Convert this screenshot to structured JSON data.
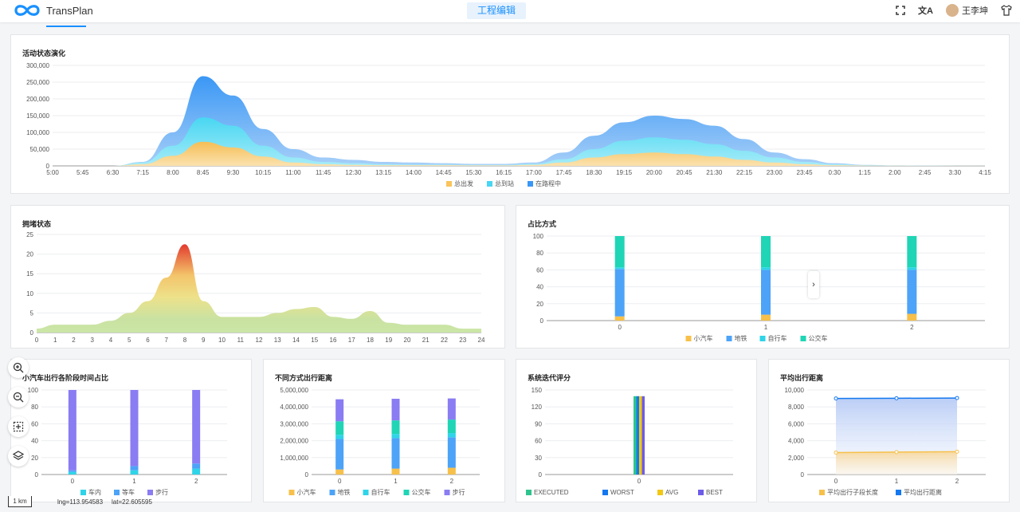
{
  "app": {
    "name": "TransPlan",
    "active_tab": "工程编辑",
    "user": "王李坤"
  },
  "map": {
    "scale": "1 km",
    "lng": "lng=113.954583",
    "lat": "lat=22.605595"
  },
  "panels": {
    "activity": {
      "title": "活动状态演化"
    },
    "congestion": {
      "title": "拥堵状态"
    },
    "modeshare": {
      "title": "占比方式"
    },
    "carstage": {
      "title": "小汽车出行各阶段时间占比"
    },
    "modedist": {
      "title": "不同方式出行距离"
    },
    "iteration": {
      "title": "系统迭代评分"
    },
    "avgdist": {
      "title": "平均出行距离"
    }
  },
  "colors": {
    "accent": "#1890ff",
    "depart": "#f9c45c",
    "arrive": "#48d6f2",
    "enroute": "#3a97f5",
    "car": "#f7c04a",
    "metro": "#4da3f7",
    "bike": "#2fd4e8",
    "bus": "#1fd5b5",
    "walk": "#8a7cf2"
  },
  "chart_data": [
    {
      "type": "area",
      "title": "活动状态演化",
      "ylim": [
        0,
        300000
      ],
      "yticks": [
        "0",
        "50,000",
        "100,000",
        "150,000",
        "200,000",
        "250,000",
        "300,000"
      ],
      "x": [
        "5:00",
        "5:45",
        "6:30",
        "7:15",
        "8:00",
        "8:45",
        "9:30",
        "10:15",
        "11:00",
        "11:45",
        "12:30",
        "13:15",
        "14:00",
        "14:45",
        "15:30",
        "16:15",
        "17:00",
        "17:45",
        "18:30",
        "19:15",
        "20:00",
        "20:45",
        "21:30",
        "22:15",
        "23:00",
        "23:45",
        "0:30",
        "1:15",
        "2:00",
        "2:45",
        "3:30",
        "4:15"
      ],
      "series": [
        {
          "name": "总出发",
          "values": [
            0,
            0,
            0,
            5000,
            30000,
            72000,
            55000,
            28000,
            10000,
            5000,
            3000,
            2000,
            2000,
            2000,
            1500,
            1500,
            3000,
            10000,
            25000,
            35000,
            40000,
            35000,
            28000,
            18000,
            10000,
            5000,
            2000,
            1000,
            500,
            300,
            200,
            100
          ]
        },
        {
          "name": "总到站",
          "values": [
            0,
            0,
            0,
            10000,
            60000,
            145000,
            120000,
            60000,
            25000,
            12000,
            8000,
            5000,
            4000,
            4000,
            3000,
            3000,
            6000,
            20000,
            50000,
            75000,
            85000,
            78000,
            65000,
            45000,
            25000,
            12000,
            5000,
            2000,
            1000,
            500,
            300,
            200
          ]
        },
        {
          "name": "在路程中",
          "values": [
            0,
            0,
            0,
            12000,
            100000,
            268000,
            210000,
            110000,
            50000,
            25000,
            18000,
            12000,
            10000,
            8000,
            6000,
            6000,
            10000,
            40000,
            90000,
            130000,
            150000,
            140000,
            120000,
            80000,
            40000,
            20000,
            8000,
            3000,
            1500,
            800,
            400,
            200
          ]
        }
      ]
    },
    {
      "type": "area",
      "title": "拥堵状态",
      "ylim": [
        0,
        25
      ],
      "yticks": [
        "0",
        "5",
        "10",
        "15",
        "20",
        "25"
      ],
      "x": [
        "0",
        "1",
        "2",
        "3",
        "4",
        "5",
        "6",
        "7",
        "8",
        "9",
        "10",
        "11",
        "12",
        "13",
        "14",
        "15",
        "16",
        "17",
        "18",
        "19",
        "20",
        "21",
        "22",
        "23",
        "24"
      ],
      "values": [
        1,
        2,
        2,
        2,
        3,
        5,
        8,
        14,
        22.5,
        8,
        4,
        4,
        4,
        5,
        6,
        6.5,
        4,
        3.5,
        5.5,
        2.5,
        2,
        2,
        2,
        1,
        1
      ]
    },
    {
      "type": "bar",
      "title": "占比方式",
      "categories": [
        "0",
        "1",
        "2"
      ],
      "ylim": [
        0,
        100
      ],
      "yticks": [
        "0",
        "20",
        "40",
        "60",
        "80",
        "100"
      ],
      "series": [
        {
          "name": "小汽车",
          "values": [
            5,
            7,
            8
          ]
        },
        {
          "name": "地铁",
          "values": [
            56,
            53,
            52
          ]
        },
        {
          "name": "自行车",
          "values": [
            2,
            3,
            3
          ]
        },
        {
          "name": "公交车",
          "values": [
            37,
            37,
            37
          ]
        }
      ]
    },
    {
      "type": "bar",
      "title": "小汽车出行各阶段时间占比",
      "categories": [
        "0",
        "1",
        "2"
      ],
      "ylim": [
        0,
        100
      ],
      "yticks": [
        "0",
        "20",
        "40",
        "60",
        "80",
        "100"
      ],
      "series": [
        {
          "name": "车内",
          "values": [
            3,
            5,
            7
          ]
        },
        {
          "name": "等车",
          "values": [
            2,
            5,
            6
          ]
        },
        {
          "name": "步行",
          "values": [
            95,
            90,
            87
          ]
        }
      ]
    },
    {
      "type": "bar",
      "title": "不同方式出行距离",
      "categories": [
        "0",
        "1",
        "2"
      ],
      "ylim": [
        0,
        5000000
      ],
      "yticks": [
        "0",
        "1,000,000",
        "2,000,000",
        "3,000,000",
        "4,000,000",
        "5,000,000"
      ],
      "series": [
        {
          "name": "小汽车",
          "values": [
            300000,
            350000,
            400000
          ]
        },
        {
          "name": "地铁",
          "values": [
            1800000,
            1800000,
            1800000
          ]
        },
        {
          "name": "自行车",
          "values": [
            250000,
            250000,
            250000
          ]
        },
        {
          "name": "公交车",
          "values": [
            800000,
            800000,
            800000
          ]
        },
        {
          "name": "步行",
          "values": [
            1300000,
            1280000,
            1250000
          ]
        }
      ]
    },
    {
      "type": "bar",
      "title": "系统迭代评分",
      "categories": [
        "0"
      ],
      "ylim": [
        0,
        150
      ],
      "yticks": [
        "0",
        "30",
        "60",
        "90",
        "120",
        "150"
      ],
      "series": [
        {
          "name": "EXECUTED",
          "values": [
            139
          ]
        },
        {
          "name": "WORST",
          "values": [
            139
          ]
        },
        {
          "name": "AVG",
          "values": [
            139
          ]
        },
        {
          "name": "BEST",
          "values": [
            139
          ]
        }
      ]
    },
    {
      "type": "line",
      "title": "平均出行距离",
      "categories": [
        "0",
        "1",
        "2"
      ],
      "ylim": [
        0,
        10000
      ],
      "yticks": [
        "0",
        "2,000",
        "4,000",
        "6,000",
        "8,000",
        "10,000"
      ],
      "series": [
        {
          "name": "平均出行子段长度",
          "values": [
            2600,
            2650,
            2700
          ]
        },
        {
          "name": "平均出行距离",
          "values": [
            9000,
            9020,
            9050
          ]
        }
      ]
    }
  ]
}
